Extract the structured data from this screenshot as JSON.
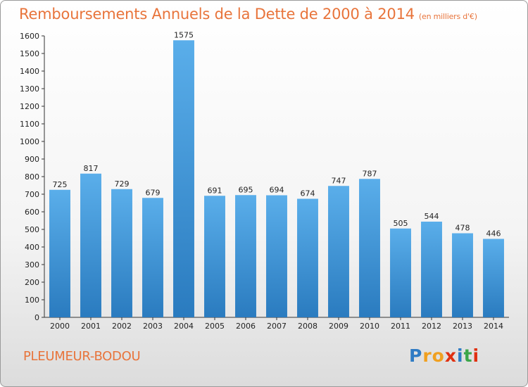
{
  "title": "Remboursements Annuels de la Dette de 2000 à 2014",
  "unit": "(en milliers d'€)",
  "commune": "PLEUMEUR-BODOU",
  "logo": {
    "letters": [
      "P",
      "r",
      "o",
      "x",
      "i",
      "t",
      "i"
    ],
    "colors": [
      "#2e7bc4",
      "#f0a020",
      "#f0a020",
      "#e03010",
      "#2e7bc4",
      "#3ca64a",
      "#e03010"
    ]
  },
  "colors": {
    "bar_top": "#5aaeea",
    "bar_bottom": "#2a7bbf",
    "text": "#e8743b"
  },
  "chart_data": {
    "type": "bar",
    "categories": [
      "2000",
      "2001",
      "2002",
      "2003",
      "2004",
      "2005",
      "2006",
      "2007",
      "2008",
      "2009",
      "2010",
      "2011",
      "2012",
      "2013",
      "2014"
    ],
    "values": [
      725,
      817,
      729,
      679,
      1575,
      691,
      695,
      694,
      674,
      747,
      787,
      505,
      544,
      478,
      446
    ],
    "title": "Remboursements Annuels de la Dette de 2000 à 2014",
    "xlabel": "",
    "ylabel": "",
    "ylim": [
      0,
      1600
    ],
    "yticks": [
      0,
      100,
      200,
      300,
      400,
      500,
      600,
      700,
      800,
      900,
      1000,
      1100,
      1200,
      1300,
      1400,
      1500,
      1600
    ],
    "grid": false,
    "data_labels": true
  }
}
